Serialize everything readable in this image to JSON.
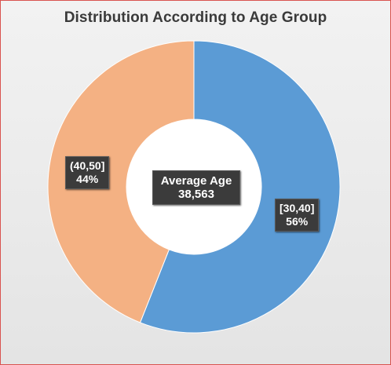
{
  "chart_data": {
    "type": "pie",
    "donut": true,
    "title": "Distribution According to Age Group",
    "center_label": {
      "title": "Average Age",
      "value": "38,563"
    },
    "slices": [
      {
        "label": "[30,40]",
        "value": 56,
        "percent_label": "56%",
        "color": "#5b9bd5"
      },
      {
        "label": "(40,50]",
        "value": 44,
        "percent_label": "44%",
        "color": "#f4b183"
      }
    ],
    "start_angle_deg": 0,
    "direction": "clockwise"
  }
}
